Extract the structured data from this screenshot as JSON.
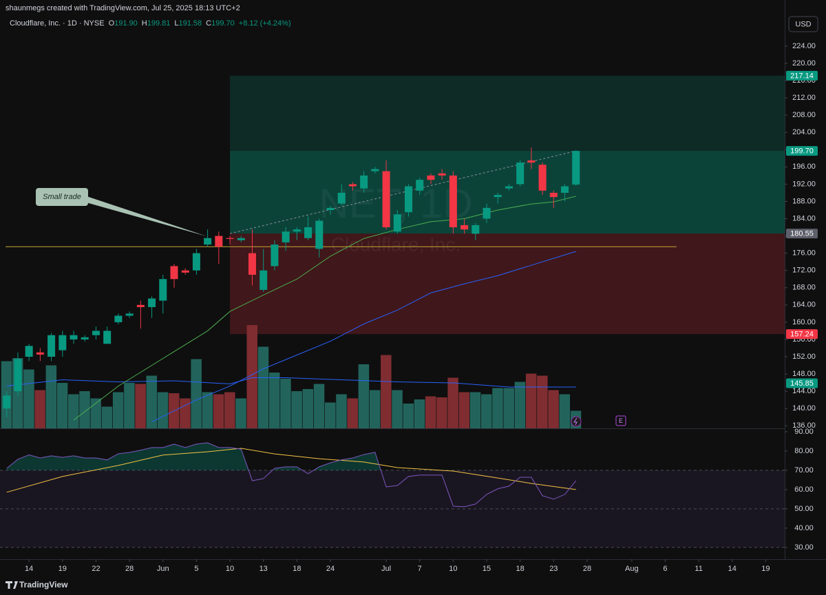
{
  "header": {
    "credit": "shaunmegs created with TradingView.com, Jul 25, 2025 18:13 UTC+2",
    "currency": "USD",
    "brand": "TradingView"
  },
  "chart_data": {
    "type": "candlestick",
    "legend": {
      "symbol": "Cloudflare, Inc. · 1D · NYSE",
      "ohlc": [
        {
          "key": "O",
          "value": "191.90"
        },
        {
          "key": "H",
          "value": "199.81"
        },
        {
          "key": "L",
          "value": "191.58"
        },
        {
          "key": "C",
          "value": "199.70"
        }
      ],
      "change": "+8.12 (+4.24%)"
    },
    "watermark": {
      "title": "NET, 1D",
      "subtitle": "Cloudflare, Inc."
    },
    "annotation": "Small trade",
    "earnings_marker": "E",
    "up_color": "#089981",
    "down_color": "#f23645",
    "volume_up_color": "#22645c",
    "volume_down_color": "#7f2d31",
    "xlim": [
      -0.6,
      69.7
    ],
    "xticks": [
      {
        "value": 2,
        "label": "14"
      },
      {
        "value": 5,
        "label": "19"
      },
      {
        "value": 8,
        "label": "22"
      },
      {
        "value": 11,
        "label": "28"
      },
      {
        "value": 14,
        "label": "Jun"
      },
      {
        "value": 17,
        "label": "5"
      },
      {
        "value": 20,
        "label": "10"
      },
      {
        "value": 23,
        "label": "13"
      },
      {
        "value": 26,
        "label": "18"
      },
      {
        "value": 29,
        "label": "24"
      },
      {
        "value": 34,
        "label": "Jul"
      },
      {
        "value": 37,
        "label": "7"
      },
      {
        "value": 40,
        "label": "10"
      },
      {
        "value": 43,
        "label": "15"
      },
      {
        "value": 46,
        "label": "18"
      },
      {
        "value": 49,
        "label": "23"
      },
      {
        "value": 52,
        "label": "28"
      },
      {
        "value": 56,
        "label": "Aug"
      },
      {
        "value": 59,
        "label": "6"
      },
      {
        "value": 62,
        "label": "11"
      },
      {
        "value": 65,
        "label": "14"
      },
      {
        "value": 68,
        "label": "19"
      }
    ],
    "ylim": [
      135.4,
      226.7
    ],
    "yticks": [
      {
        "value": 136,
        "label": "136.00"
      },
      {
        "value": 140,
        "label": "140.00"
      },
      {
        "value": 144,
        "label": "144.00"
      },
      {
        "value": 148,
        "label": "148.00"
      },
      {
        "value": 152,
        "label": "152.00"
      },
      {
        "value": 156,
        "label": "156.00"
      },
      {
        "value": 160,
        "label": "160.00"
      },
      {
        "value": 164,
        "label": "164.00"
      },
      {
        "value": 168,
        "label": "168.00"
      },
      {
        "value": 172,
        "label": "172.00"
      },
      {
        "value": 176,
        "label": "176.00"
      },
      {
        "value": 180,
        "label": "180.00"
      },
      {
        "value": 184,
        "label": "184.00"
      },
      {
        "value": 188,
        "label": "188.00"
      },
      {
        "value": 192,
        "label": "192.00"
      },
      {
        "value": 196,
        "label": "196.00"
      },
      {
        "value": 200,
        "label": "200.00"
      },
      {
        "value": 204,
        "label": "204.00"
      },
      {
        "value": 208,
        "label": "208.00"
      },
      {
        "value": 212,
        "label": "212.00"
      },
      {
        "value": 216,
        "label": "216.00"
      },
      {
        "value": 220,
        "label": "220.00"
      },
      {
        "value": 224,
        "label": "224.00"
      }
    ],
    "candles": {
      "x": [
        0,
        1,
        2,
        3,
        4,
        5,
        6,
        7,
        8,
        9,
        10,
        11,
        12,
        13,
        14,
        15,
        16,
        17,
        18,
        19,
        20,
        21,
        22,
        23,
        24,
        25,
        26,
        27,
        28,
        29,
        30,
        31,
        32,
        33,
        34,
        35,
        36,
        37,
        38,
        39,
        40,
        41,
        42,
        43,
        44,
        45,
        46,
        47,
        48,
        49,
        50,
        51
      ],
      "open": [
        140,
        144,
        152,
        153,
        152,
        153.5,
        156,
        156,
        157,
        155,
        160,
        161.5,
        164,
        163.5,
        165,
        173,
        172,
        172,
        178,
        180,
        179.5,
        179,
        176,
        167.5,
        173,
        178.5,
        181,
        179.5,
        177,
        186,
        187.5,
        192,
        191,
        195,
        195,
        181,
        185.5,
        190.5,
        194,
        194.5,
        194,
        182.5,
        180.5,
        184,
        189,
        191,
        192,
        197.5,
        196.5,
        190,
        190,
        191.9
      ],
      "high": [
        144,
        153,
        155,
        154,
        157.5,
        158,
        158,
        157,
        159,
        159,
        162,
        162.5,
        165,
        166,
        171,
        173.5,
        172.5,
        177,
        181.5,
        181,
        180,
        180,
        181.5,
        177,
        179,
        182,
        182,
        184.5,
        184,
        187,
        192,
        192.5,
        195,
        196,
        197.5,
        186,
        192,
        193.5,
        194.5,
        195.5,
        195,
        184,
        183,
        187.5,
        190,
        192,
        197.5,
        200.5,
        197,
        190.5,
        192,
        199.81
      ],
      "low": [
        138,
        143,
        151,
        151,
        151,
        152,
        155,
        155.5,
        156,
        155,
        159.5,
        161,
        158.5,
        161,
        162,
        168,
        171,
        171,
        177.5,
        173.5,
        178,
        178.5,
        168.5,
        167,
        172,
        176.5,
        179,
        179,
        175,
        185,
        187,
        190.5,
        190,
        194.5,
        181.5,
        180.5,
        184.5,
        189.5,
        192,
        193,
        180.5,
        180.5,
        179,
        183,
        187.5,
        190.5,
        191.5,
        195.5,
        189.5,
        186.5,
        188,
        191.58
      ],
      "close": [
        143,
        151.5,
        154.5,
        152.5,
        157,
        157,
        157,
        156.5,
        158,
        158,
        161.5,
        162,
        163.5,
        165.5,
        170,
        170,
        171.5,
        176,
        179.5,
        177.5,
        179.3,
        179.5,
        171,
        172,
        178,
        181,
        181.5,
        182,
        183.5,
        186.5,
        190,
        191.5,
        194,
        195.5,
        182,
        185,
        191.5,
        193,
        193,
        194,
        182,
        181.5,
        182.5,
        186.5,
        189.5,
        191.5,
        197,
        197,
        190.5,
        189,
        191.5,
        199.7
      ]
    },
    "volume": {
      "ylim": [
        0,
        10
      ],
      "values": [
        6.5,
        6.8,
        5.7,
        3.7,
        6.1,
        4.4,
        3.3,
        3.6,
        2.9,
        2.1,
        3.5,
        4.4,
        4.3,
        5.1,
        3.5,
        3.4,
        2.9,
        6.7,
        3.5,
        3.3,
        3.5,
        2.9,
        10.0,
        7.9,
        5.4,
        4.8,
        3.6,
        3.8,
        4.3,
        2.5,
        3.3,
        2.9,
        6.2,
        3.7,
        7.1,
        3.7,
        2.4,
        2.8,
        3.1,
        3.0,
        4.9,
        3.5,
        3.5,
        3.3,
        3.9,
        3.9,
        4.5,
        5.3,
        5.1,
        3.7,
        3.3,
        1.7
      ],
      "ma": {
        "color": "#2962ff",
        "x": [
          0,
          5,
          10,
          15,
          20,
          22,
          25,
          30,
          35,
          40,
          45,
          51
        ],
        "values": [
          4.1,
          4.7,
          4.5,
          4.6,
          4.3,
          4.9,
          4.9,
          4.7,
          4.5,
          4.4,
          4.0,
          4.0
        ]
      }
    },
    "moving_averages": [
      {
        "color": "#4caf50",
        "x": [
          6,
          10,
          14,
          18,
          20,
          23,
          26,
          29,
          32,
          35,
          38,
          41,
          44,
          47,
          49,
          51
        ],
        "values": [
          137.3,
          145.2,
          151.6,
          158,
          162.5,
          166.3,
          170,
          175.3,
          179.4,
          181.5,
          183.3,
          184,
          186,
          187.4,
          187.9,
          189.2
        ]
      },
      {
        "color": "#2962ff",
        "x": [
          13,
          17,
          20,
          23,
          26,
          29,
          32,
          35,
          38,
          41,
          44,
          47,
          50,
          51
        ],
        "values": [
          136.9,
          142,
          145.2,
          149.2,
          152.4,
          155.6,
          159.6,
          162.8,
          166.8,
          168.9,
          170.8,
          173.2,
          175.6,
          176.4
        ]
      }
    ],
    "trend_line": {
      "color": "#c9a93a",
      "x": [
        -0.1,
        60
      ],
      "values": [
        177.5,
        177.5
      ]
    },
    "position": {
      "start_index": 20,
      "entry": 180.55,
      "target": 217.14,
      "stop": 157.24
    },
    "price_labels": [
      {
        "value": 199.7,
        "label": "199.70",
        "color": "#089981"
      },
      {
        "value": 145.85,
        "color": "#089981"
      }
    ],
    "rsi": {
      "color": "#7e57c2",
      "ylim": [
        24.6,
        91.4
      ],
      "yticks": [
        {
          "value": 30,
          "label": "30.00"
        },
        {
          "value": 40,
          "label": "40.00"
        },
        {
          "value": 50,
          "label": "50.00"
        },
        {
          "value": 60,
          "label": "60.00"
        },
        {
          "value": 70,
          "label": "70.00"
        },
        {
          "value": 80,
          "label": "80.00"
        },
        {
          "value": 90,
          "label": "90.00"
        }
      ],
      "band": [
        30,
        70
      ],
      "mid": 50,
      "values": [
        71,
        75.7,
        78,
        76.4,
        77.5,
        76.7,
        77.5,
        76.4,
        76.4,
        75.4,
        78.6,
        79.3,
        80.4,
        81.8,
        81.8,
        83.6,
        81.8,
        83.6,
        84.3,
        81.8,
        81.8,
        81,
        64.6,
        65.7,
        71,
        71.8,
        71.8,
        68.2,
        71.8,
        73.9,
        75.4,
        76.4,
        78.2,
        79.3,
        61.4,
        62.1,
        66.8,
        67.5,
        67.5,
        67.5,
        51.4,
        51.1,
        52.5,
        57.5,
        60.4,
        61.8,
        66.4,
        66.4,
        56.8,
        55,
        57.5,
        64.6
      ],
      "ma": {
        "color": "#f5c244",
        "x": [
          0,
          5,
          10,
          14,
          18,
          21,
          24,
          28,
          32,
          35,
          40,
          44,
          47,
          51
        ],
        "values": [
          58.6,
          66.8,
          72.5,
          77.9,
          79.6,
          81.4,
          78.5,
          76,
          74.3,
          71.4,
          69.6,
          66,
          63.2,
          60
        ]
      }
    }
  }
}
